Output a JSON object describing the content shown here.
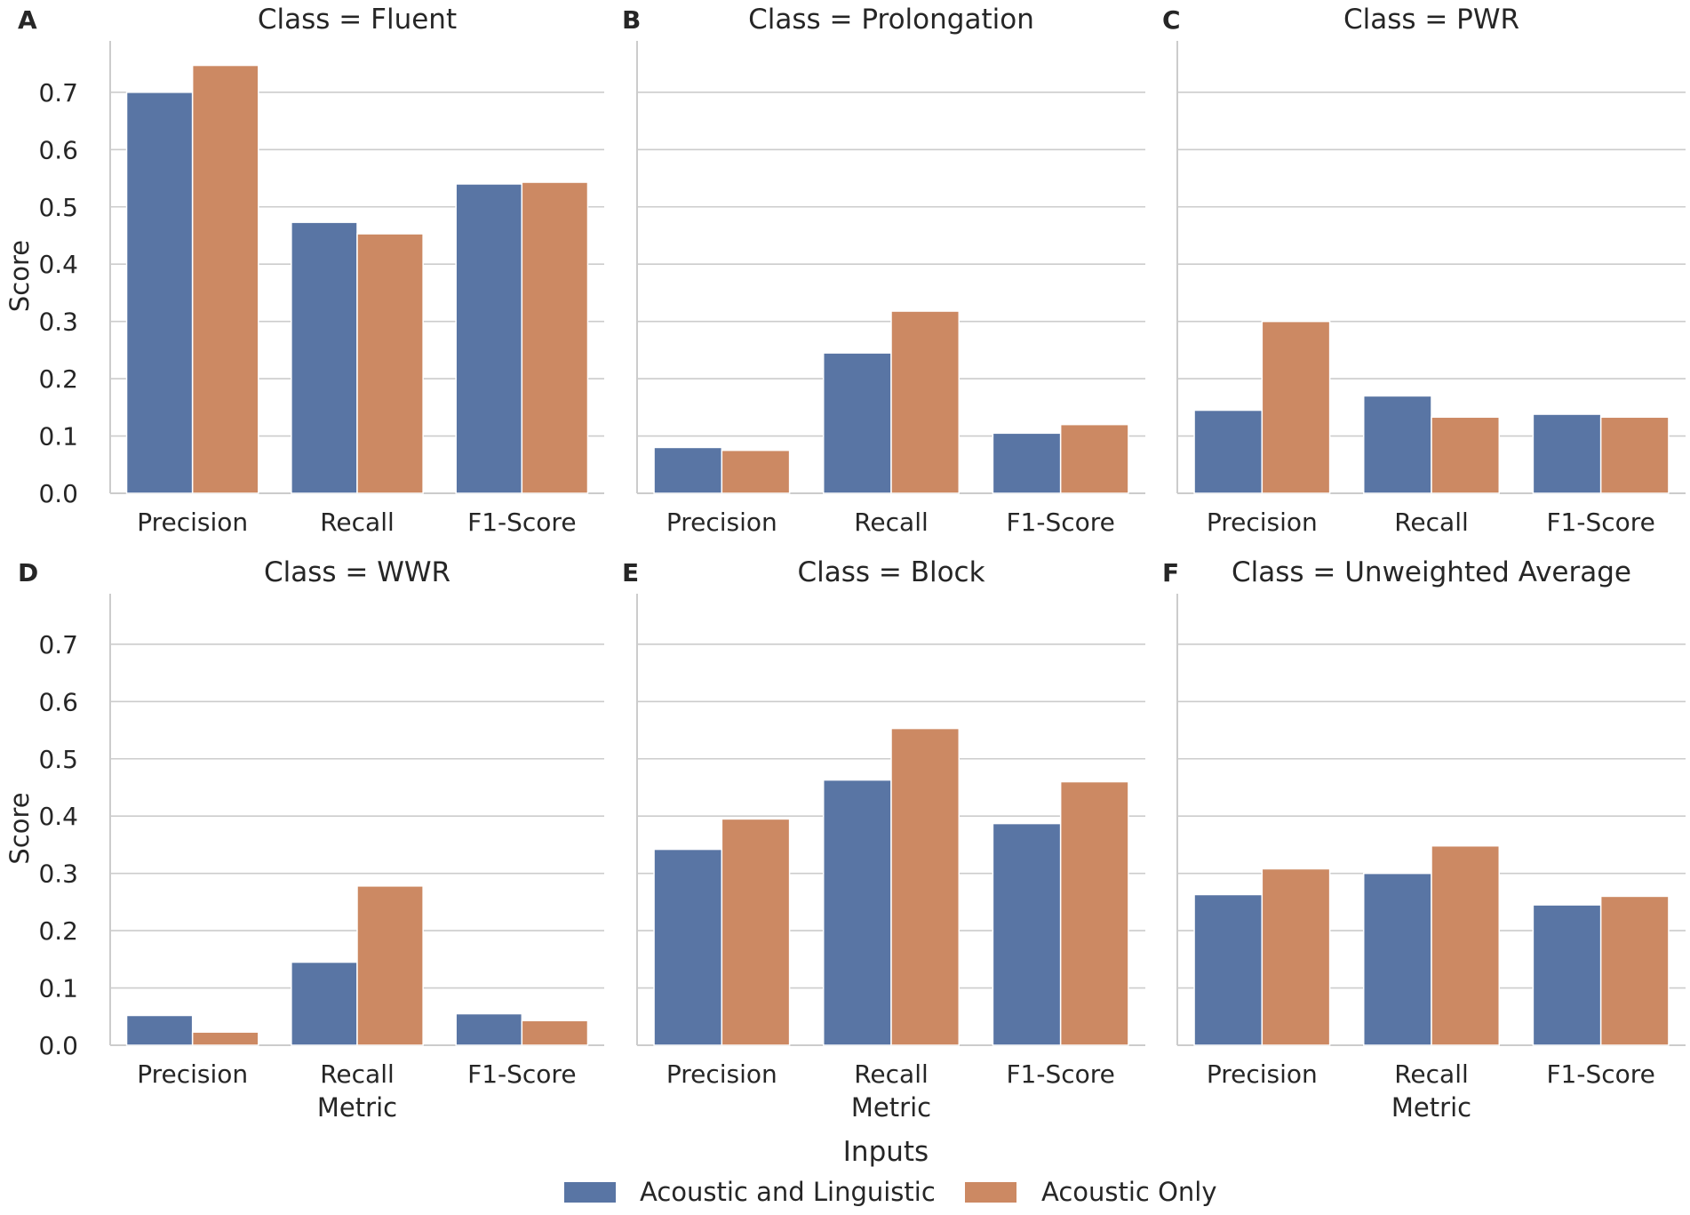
{
  "chart_data": [
    {
      "panel_label": "A",
      "type": "bar",
      "title": "Class = Fluent",
      "categories": [
        "Precision",
        "Recall",
        "F1-Score"
      ],
      "series": [
        {
          "name": "Acoustic and Linguistic",
          "values": [
            0.7,
            0.473,
            0.54
          ]
        },
        {
          "name": "Acoustic Only",
          "values": [
            0.747,
            0.453,
            0.543
          ]
        }
      ],
      "xlabel": "",
      "ylabel": "Score",
      "ylim": [
        0,
        0.78
      ],
      "yticks": [
        "0.0",
        "0.1",
        "0.2",
        "0.3",
        "0.4",
        "0.5",
        "0.6",
        "0.7"
      ]
    },
    {
      "panel_label": "B",
      "type": "bar",
      "title": "Class = Prolongation",
      "categories": [
        "Precision",
        "Recall",
        "F1-Score"
      ],
      "series": [
        {
          "name": "Acoustic and Linguistic",
          "values": [
            0.08,
            0.245,
            0.105
          ]
        },
        {
          "name": "Acoustic Only",
          "values": [
            0.075,
            0.318,
            0.12
          ]
        }
      ],
      "xlabel": "",
      "ylabel": "",
      "ylim": [
        0,
        0.78
      ],
      "yticks": []
    },
    {
      "panel_label": "C",
      "type": "bar",
      "title": "Class = PWR",
      "categories": [
        "Precision",
        "Recall",
        "F1-Score"
      ],
      "series": [
        {
          "name": "Acoustic and Linguistic",
          "values": [
            0.145,
            0.17,
            0.138
          ]
        },
        {
          "name": "Acoustic Only",
          "values": [
            0.3,
            0.133,
            0.133
          ]
        }
      ],
      "xlabel": "",
      "ylabel": "",
      "ylim": [
        0,
        0.78
      ],
      "yticks": []
    },
    {
      "panel_label": "D",
      "type": "bar",
      "title": "Class = WWR",
      "categories": [
        "Precision",
        "Recall",
        "F1-Score"
      ],
      "series": [
        {
          "name": "Acoustic and Linguistic",
          "values": [
            0.052,
            0.145,
            0.055
          ]
        },
        {
          "name": "Acoustic Only",
          "values": [
            0.023,
            0.278,
            0.043
          ]
        }
      ],
      "xlabel": "Metric",
      "ylabel": "Score",
      "ylim": [
        0,
        0.78
      ],
      "yticks": [
        "0.0",
        "0.1",
        "0.2",
        "0.3",
        "0.4",
        "0.5",
        "0.6",
        "0.7"
      ]
    },
    {
      "panel_label": "E",
      "type": "bar",
      "title": "Class = Block",
      "categories": [
        "Precision",
        "Recall",
        "F1-Score"
      ],
      "series": [
        {
          "name": "Acoustic and Linguistic",
          "values": [
            0.342,
            0.463,
            0.387
          ]
        },
        {
          "name": "Acoustic Only",
          "values": [
            0.395,
            0.553,
            0.46
          ]
        }
      ],
      "xlabel": "Metric",
      "ylabel": "",
      "ylim": [
        0,
        0.78
      ],
      "yticks": []
    },
    {
      "panel_label": "F",
      "type": "bar",
      "title": "Class = Unweighted Average",
      "categories": [
        "Precision",
        "Recall",
        "F1-Score"
      ],
      "series": [
        {
          "name": "Acoustic and Linguistic",
          "values": [
            0.263,
            0.3,
            0.245
          ]
        },
        {
          "name": "Acoustic Only",
          "values": [
            0.308,
            0.348,
            0.26
          ]
        }
      ],
      "xlabel": "Metric",
      "ylabel": "",
      "ylim": [
        0,
        0.78
      ],
      "yticks": []
    }
  ],
  "legend": {
    "title": "Inputs",
    "items": [
      {
        "label": "Acoustic and Linguistic",
        "color": "#5975a4"
      },
      {
        "label": "Acoustic Only",
        "color": "#cc8963"
      }
    ]
  },
  "colors": {
    "series_0": "#5975a4",
    "series_1": "#cc8963",
    "grid": "#cccccc",
    "axis": "#cccccc",
    "text": "#262626"
  }
}
